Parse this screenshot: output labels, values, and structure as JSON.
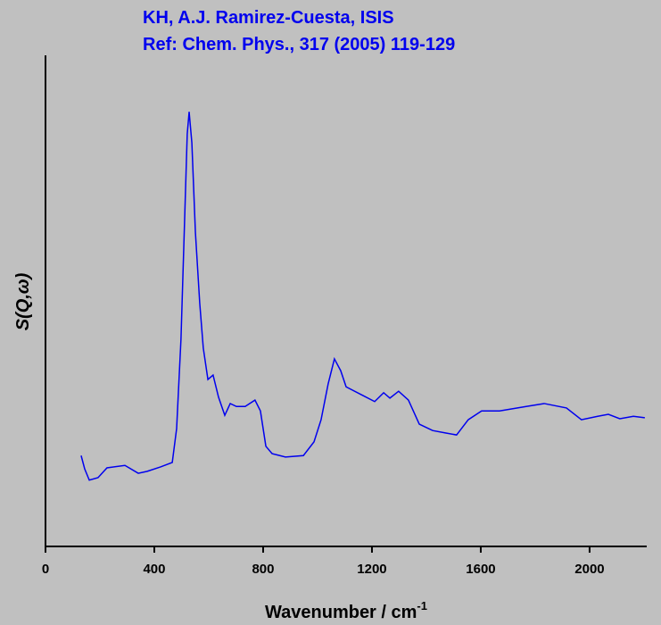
{
  "chart_data": {
    "type": "line",
    "title": "KH, A.J. Ramirez-Cuesta, ISIS",
    "subtitle": "Ref: Chem. Phys., 317 (2005) 119-129",
    "x_label": "Wavenumber / cm",
    "x_label_superscript": "-1",
    "y_label": "S(Q,ω)",
    "xlim": [
      0,
      2210
    ],
    "xticks": [
      0,
      400,
      800,
      1200,
      1600,
      2000
    ],
    "ylim": [
      0,
      1
    ],
    "series": [
      {
        "color": "#0000ee",
        "x": [
          131,
          144,
          161,
          193,
          226,
          292,
          341,
          374,
          423,
          466,
          482,
          498,
          511,
          521,
          528,
          538,
          551,
          567,
          580,
          597,
          616,
          636,
          659,
          679,
          702,
          734,
          770,
          790,
          810,
          833,
          882,
          948,
          987,
          1013,
          1039,
          1062,
          1085,
          1105,
          1161,
          1210,
          1243,
          1266,
          1298,
          1334,
          1374,
          1423,
          1472,
          1511,
          1554,
          1603,
          1669,
          1767,
          1833,
          1915,
          1970,
          2030,
          2069,
          2111,
          2161,
          2203
        ],
        "values": [
          0.185,
          0.158,
          0.135,
          0.14,
          0.16,
          0.165,
          0.149,
          0.153,
          0.162,
          0.171,
          0.24,
          0.422,
          0.658,
          0.84,
          0.885,
          0.822,
          0.64,
          0.495,
          0.404,
          0.34,
          0.349,
          0.304,
          0.267,
          0.291,
          0.285,
          0.285,
          0.298,
          0.276,
          0.204,
          0.189,
          0.182,
          0.185,
          0.213,
          0.258,
          0.331,
          0.382,
          0.358,
          0.325,
          0.309,
          0.295,
          0.313,
          0.302,
          0.316,
          0.298,
          0.249,
          0.236,
          0.231,
          0.227,
          0.258,
          0.276,
          0.276,
          0.285,
          0.291,
          0.282,
          0.258,
          0.265,
          0.269,
          0.26,
          0.265,
          0.262
        ]
      }
    ]
  }
}
